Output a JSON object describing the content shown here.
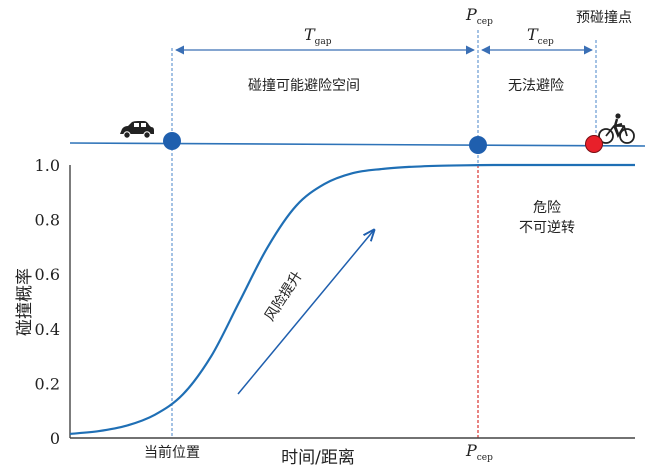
{
  "chart_data": {
    "type": "line",
    "xlabel": "时间/距离",
    "ylabel": "碰撞概率",
    "ylim": [
      0,
      1.0
    ],
    "yticks": [
      "0",
      "0.2",
      "0.4",
      "0.6",
      "0.8",
      "1.0"
    ],
    "x_markers": {
      "current": "当前位置",
      "pcep_main": "P",
      "pcep_sub": "cep"
    },
    "top_labels": {
      "pcep_main": "P",
      "pcep_sub": "cep",
      "collision_point": "预碰撞点",
      "tgap_main": "T",
      "tgap_sub": "gap",
      "tcep_main": "T",
      "tcep_sub": "cep",
      "avoidable_zone": "碰撞可能避险空间",
      "unavoidable_zone": "无法避险"
    },
    "annotations": {
      "danger_line1": "危险",
      "danger_line2": "不可逆转",
      "risk": "风险提升"
    },
    "x": [
      0,
      0.05,
      0.1,
      0.15,
      0.2,
      0.25,
      0.3,
      0.35,
      0.4,
      0.45,
      0.5,
      0.55,
      0.6,
      0.65,
      0.7,
      0.75,
      0.8,
      0.85,
      0.9,
      0.95,
      1.0
    ],
    "series": [
      {
        "values": [
          0.015,
          0.025,
          0.045,
          0.085,
          0.16,
          0.3,
          0.5,
          0.7,
          0.85,
          0.93,
          0.97,
          0.985,
          0.993,
          0.997,
          0.999,
          1.0,
          1.0,
          1.0,
          1.0,
          1.0,
          1.0
        ],
        "color": "#1f6fb5"
      }
    ],
    "colors": {
      "axis": "#444444",
      "curve": "#1f6fb5",
      "timeline": "#2e73b8",
      "dot": "#1f5fae",
      "dot_collision": "#e8202a",
      "dashed_blue": "#4a86c8",
      "dashed_red": "#d9312d",
      "arrow": "#3a6fb5"
    },
    "icons": [
      "car-icon",
      "cyclist-icon"
    ]
  }
}
